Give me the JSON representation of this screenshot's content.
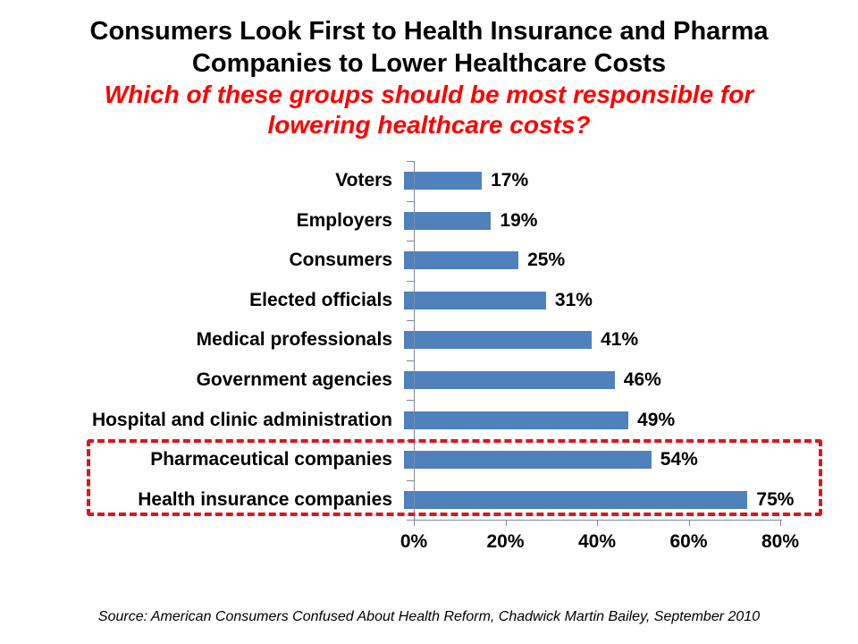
{
  "slide": {
    "title_lines": [
      "Consumers Look First to Health Insurance and Pharma",
      "Companies to Lower Healthcare Costs"
    ],
    "subtitle_lines": [
      "Which of these groups should be most responsible for",
      "lowering healthcare costs?"
    ],
    "source": "Source: American Consumers Confused About Health Reform, Chadwick Martin Bailey, September 2010"
  },
  "chart_data": {
    "type": "bar",
    "orientation": "horizontal",
    "title": "Consumers Look First to Health Insurance and Pharma Companies to Lower Healthcare Costs",
    "subtitle": "Which of these groups should be most responsible for lowering healthcare costs?",
    "categories": [
      "Voters",
      "Employers",
      "Consumers",
      "Elected officials",
      "Medical professionals",
      "Government agencies",
      "Hospital and clinic administration",
      "Pharmaceutical companies",
      "Health insurance companies"
    ],
    "values": [
      17,
      19,
      25,
      31,
      41,
      46,
      49,
      54,
      75
    ],
    "value_labels": [
      "17%",
      "19%",
      "25%",
      "31%",
      "41%",
      "46%",
      "49%",
      "54%",
      "75%"
    ],
    "x_ticks": [
      "0%",
      "20%",
      "40%",
      "60%",
      "80%"
    ],
    "xlim": [
      0,
      80
    ],
    "grid": false,
    "legend": false,
    "bar_color": "#4F81BD",
    "axis_color": "#808A99",
    "highlight_box": {
      "style": "dashed",
      "color": "#DE141E",
      "categories": [
        "Pharmaceutical companies",
        "Health insurance companies"
      ]
    }
  }
}
